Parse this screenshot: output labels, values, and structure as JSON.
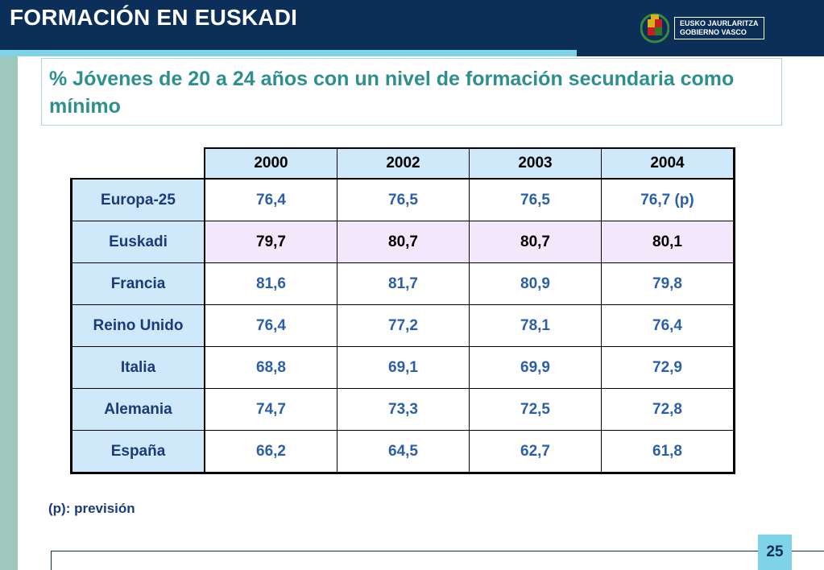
{
  "header": {
    "title": "FORMACIÓN EN EUSKADI",
    "logo_line1": "EUSKO JAURLARITZA",
    "logo_line2": "GOBIERNO VASCO"
  },
  "subtitle": "% Jóvenes de 20 a 24 años con un nivel de formación secundaria como mínimo",
  "table": {
    "columns": [
      "2000",
      "2002",
      "2003",
      "2004"
    ],
    "rows": [
      {
        "label": "Europa-25",
        "values": [
          "76,4",
          "76,5",
          "76,5",
          "76,7 (p)"
        ]
      },
      {
        "label": "Euskadi",
        "values": [
          "79,7",
          "80,7",
          "80,7",
          "80,1"
        ]
      },
      {
        "label": "Francia",
        "values": [
          "81,6",
          "81,7",
          "80,9",
          "79,8"
        ]
      },
      {
        "label": "Reino Unido",
        "values": [
          "76,4",
          "77,2",
          "78,1",
          "76,4"
        ]
      },
      {
        "label": "Italia",
        "values": [
          "68,8",
          "69,1",
          "69,9",
          "72,9"
        ]
      },
      {
        "label": "Alemania",
        "values": [
          "74,7",
          "73,3",
          "72,5",
          "72,8"
        ]
      },
      {
        "label": "España",
        "values": [
          "66,2",
          "64,5",
          "62,7",
          "61,8"
        ]
      }
    ]
  },
  "note": "(p): previsión",
  "page_number": "25",
  "colors": {
    "header_bg": "#0c2f5a",
    "accent": "#7fd3e6",
    "subtitle_text": "#2e8f8f",
    "value_text": "#2b5faa",
    "highlight_row": "#f3e8fb"
  }
}
